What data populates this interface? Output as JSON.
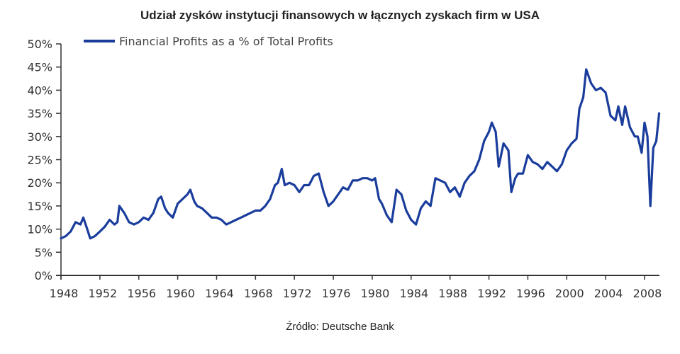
{
  "title": "Udział zysków instytucji finansowych w łącznych zyskach firm w USA",
  "source": "Źródło: Deutsche Bank",
  "legend": {
    "label": "Financial Profits as a % of Total Profits",
    "color": "#1a3d9c"
  },
  "colors": {
    "line": "#1a3d9c",
    "axis": "#333333"
  },
  "chart_data": {
    "type": "line",
    "title": "Udział zysków instytucji finansowych w łącznych zyskach firm w USA",
    "xlabel": "",
    "ylabel": "",
    "ylim": [
      0,
      50
    ],
    "xlim": [
      1948,
      2009.5
    ],
    "grid": false,
    "legend_position": "top-left",
    "y_ticks": [
      "0%",
      "5%",
      "10%",
      "15%",
      "20%",
      "25%",
      "30%",
      "35%",
      "40%",
      "45%",
      "50%"
    ],
    "x_ticks": [
      "1948",
      "1952",
      "1956",
      "1960",
      "1964",
      "1968",
      "1972",
      "1976",
      "1980",
      "1984",
      "1988",
      "1992",
      "1996",
      "2000",
      "2004",
      "2008"
    ],
    "series": [
      {
        "name": "Financial Profits as a % of Total Profits",
        "x": [
          1948.0,
          1948.5,
          1949.0,
          1949.5,
          1950.0,
          1950.3,
          1950.7,
          1951.0,
          1951.5,
          1952.0,
          1952.5,
          1953.0,
          1953.5,
          1953.8,
          1954.0,
          1954.5,
          1955.0,
          1955.5,
          1956.0,
          1956.5,
          1957.0,
          1957.5,
          1958.0,
          1958.3,
          1958.7,
          1959.0,
          1959.5,
          1960.0,
          1960.5,
          1961.0,
          1961.3,
          1961.7,
          1962.0,
          1962.5,
          1963.0,
          1963.5,
          1964.0,
          1964.5,
          1965.0,
          1965.5,
          1966.0,
          1966.5,
          1967.0,
          1967.5,
          1968.0,
          1968.5,
          1969.0,
          1969.5,
          1970.0,
          1970.3,
          1970.7,
          1971.0,
          1971.5,
          1972.0,
          1972.5,
          1973.0,
          1973.5,
          1974.0,
          1974.5,
          1975.0,
          1975.5,
          1976.0,
          1976.5,
          1977.0,
          1977.5,
          1978.0,
          1978.5,
          1979.0,
          1979.5,
          1980.0,
          1980.3,
          1980.7,
          1981.0,
          1981.5,
          1982.0,
          1982.5,
          1983.0,
          1983.5,
          1984.0,
          1984.5,
          1985.0,
          1985.5,
          1986.0,
          1986.5,
          1987.0,
          1987.5,
          1988.0,
          1988.5,
          1989.0,
          1989.5,
          1990.0,
          1990.5,
          1991.0,
          1991.5,
          1992.0,
          1992.3,
          1992.7,
          1993.0,
          1993.5,
          1994.0,
          1994.3,
          1994.7,
          1995.0,
          1995.5,
          1996.0,
          1996.5,
          1997.0,
          1997.5,
          1998.0,
          1998.5,
          1999.0,
          1999.5,
          2000.0,
          2000.5,
          2001.0,
          2001.3,
          2001.7,
          2002.0,
          2002.5,
          2003.0,
          2003.5,
          2004.0,
          2004.5,
          2005.0,
          2005.3,
          2005.7,
          2006.0,
          2006.5,
          2007.0,
          2007.3,
          2007.7,
          2008.0,
          2008.3,
          2008.6,
          2008.9,
          2009.2,
          2009.5
        ],
        "values": [
          8.0,
          8.5,
          9.5,
          11.5,
          11.0,
          12.5,
          10.0,
          8.0,
          8.5,
          9.5,
          10.5,
          12.0,
          11.0,
          11.5,
          15.0,
          13.5,
          11.5,
          11.0,
          11.5,
          12.5,
          12.0,
          13.5,
          16.5,
          17.0,
          14.5,
          13.5,
          12.5,
          15.5,
          16.5,
          17.5,
          18.5,
          16.0,
          15.0,
          14.5,
          13.5,
          12.5,
          12.5,
          12.0,
          11.0,
          11.5,
          12.0,
          12.5,
          13.0,
          13.5,
          14.0,
          14.0,
          15.0,
          16.5,
          19.5,
          20.0,
          23.0,
          19.5,
          20.0,
          19.5,
          18.0,
          19.5,
          19.5,
          21.5,
          22.0,
          18.0,
          15.0,
          16.0,
          17.5,
          19.0,
          18.5,
          20.5,
          20.5,
          21.0,
          21.0,
          20.5,
          21.0,
          16.5,
          15.5,
          13.0,
          11.5,
          18.5,
          17.5,
          14.0,
          12.0,
          11.0,
          14.5,
          16.0,
          15.0,
          21.0,
          20.5,
          20.0,
          18.0,
          19.0,
          17.0,
          20.0,
          21.5,
          22.5,
          25.0,
          29.0,
          31.0,
          33.0,
          31.0,
          23.5,
          28.5,
          27.0,
          18.0,
          21.0,
          22.0,
          22.0,
          26.0,
          24.5,
          24.0,
          23.0,
          24.5,
          23.5,
          22.5,
          24.0,
          27.0,
          28.5,
          29.5,
          36.0,
          38.5,
          44.5,
          41.5,
          40.0,
          40.5,
          39.5,
          34.5,
          33.5,
          36.5,
          32.5,
          36.5,
          32.0,
          30.0,
          30.0,
          26.5,
          33.0,
          30.0,
          15.0,
          27.5,
          29.0,
          35.0
        ]
      }
    ]
  }
}
